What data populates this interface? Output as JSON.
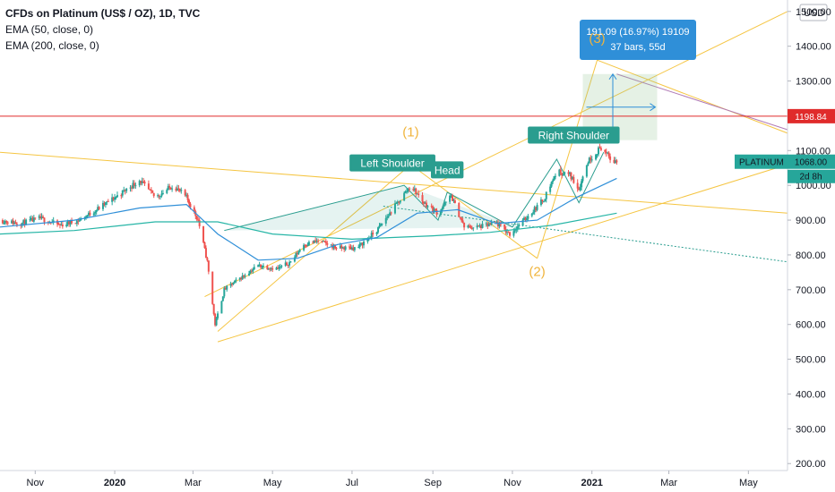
{
  "header": {
    "title": "CFDs on Platinum (US$ / OZ), 1D, TVC",
    "ema50": "EMA (50, close, 0)",
    "ema200": "EMA (200, close, 0)"
  },
  "currency": "USD",
  "chart_data": {
    "type": "candlestick",
    "symbol": "PLATINUM",
    "timeframe": "1D",
    "source": "TVC",
    "x_ticks": [
      "Nov",
      "2020",
      "Mar",
      "May",
      "Jul",
      "Sep",
      "Nov",
      "2021",
      "Mar",
      "May"
    ],
    "x_bold_ticks": [
      "2020",
      "2021"
    ],
    "y_ticks": [
      1500,
      1400,
      1300,
      1200,
      1100,
      1000,
      900,
      800,
      700,
      600,
      500,
      400,
      300,
      200
    ],
    "y_tick_labels": [
      "1500.00",
      "1400.00",
      "1300.00",
      "1200.00",
      "1100.00",
      "1000.00",
      "900.00",
      "800.00",
      "700.00",
      "600.00",
      "500.00",
      "400.00",
      "300.00",
      "200.00"
    ],
    "ylim": [
      180,
      1520
    ],
    "xlim": [
      "2019-10-05",
      "2021-05-31"
    ],
    "price_series": [
      [
        "2019-10-05",
        900
      ],
      [
        "2019-10-20",
        890
      ],
      [
        "2019-11-05",
        905
      ],
      [
        "2019-11-20",
        885
      ],
      [
        "2019-12-05",
        900
      ],
      [
        "2019-12-20",
        935
      ],
      [
        "2020-01-05",
        975
      ],
      [
        "2020-01-20",
        1015
      ],
      [
        "2020-02-01",
        965
      ],
      [
        "2020-02-15",
        1000
      ],
      [
        "2020-02-25",
        965
      ],
      [
        "2020-03-05",
        900
      ],
      [
        "2020-03-12",
        780
      ],
      [
        "2020-03-18",
        600
      ],
      [
        "2020-03-25",
        700
      ],
      [
        "2020-04-05",
        730
      ],
      [
        "2020-04-20",
        770
      ],
      [
        "2020-05-05",
        760
      ],
      [
        "2020-05-15",
        780
      ],
      [
        "2020-05-25",
        830
      ],
      [
        "2020-06-05",
        840
      ],
      [
        "2020-06-20",
        820
      ],
      [
        "2020-07-05",
        820
      ],
      [
        "2020-07-20",
        870
      ],
      [
        "2020-08-01",
        930
      ],
      [
        "2020-08-15",
        1000
      ],
      [
        "2020-08-25",
        950
      ],
      [
        "2020-09-05",
        920
      ],
      [
        "2020-09-15",
        970
      ],
      [
        "2020-09-25",
        880
      ],
      [
        "2020-10-05",
        880
      ],
      [
        "2020-10-20",
        890
      ],
      [
        "2020-10-30",
        860
      ],
      [
        "2020-11-10",
        900
      ],
      [
        "2020-11-25",
        960
      ],
      [
        "2020-12-05",
        1040
      ],
      [
        "2020-12-15",
        1030
      ],
      [
        "2020-12-22",
        990
      ],
      [
        "2020-12-29",
        1070
      ],
      [
        "2021-01-08",
        1110
      ],
      [
        "2021-01-15",
        1075
      ],
      [
        "2021-01-20",
        1068
      ]
    ],
    "ema50": [
      [
        "2019-10-05",
        880
      ],
      [
        "2019-12-01",
        900
      ],
      [
        "2020-01-20",
        935
      ],
      [
        "2020-02-25",
        945
      ],
      [
        "2020-03-20",
        860
      ],
      [
        "2020-04-20",
        785
      ],
      [
        "2020-05-20",
        790
      ],
      [
        "2020-06-20",
        830
      ],
      [
        "2020-07-20",
        850
      ],
      [
        "2020-08-20",
        920
      ],
      [
        "2020-09-20",
        930
      ],
      [
        "2020-10-20",
        890
      ],
      [
        "2020-11-20",
        900
      ],
      [
        "2020-12-20",
        965
      ],
      [
        "2021-01-20",
        1020
      ]
    ],
    "ema200": [
      [
        "2019-10-05",
        860
      ],
      [
        "2019-12-01",
        870
      ],
      [
        "2020-02-01",
        895
      ],
      [
        "2020-03-20",
        895
      ],
      [
        "2020-05-01",
        860
      ],
      [
        "2020-07-01",
        845
      ],
      [
        "2020-09-01",
        855
      ],
      [
        "2020-10-15",
        865
      ],
      [
        "2020-12-01",
        885
      ],
      [
        "2021-01-20",
        920
      ]
    ],
    "annotations": [
      {
        "text": "Left Shoulder",
        "date": "2020-08-01",
        "price": 1040
      },
      {
        "text": "Head",
        "date": "2020-09-12",
        "price": 1020
      },
      {
        "text": "Right Shoulder",
        "date": "2020-12-18",
        "price": 1120
      }
    ],
    "wave_labels": [
      {
        "text": "(1)",
        "date": "2020-08-15",
        "price": 1140
      },
      {
        "text": "(2)",
        "date": "2020-11-20",
        "price": 740
      },
      {
        "text": "(3)",
        "date": "2021-01-05",
        "price": 1410
      }
    ],
    "measure": {
      "line1": "191.09 (16.97%) 19109",
      "line2": "37 bars, 55d",
      "from_price": 1130,
      "to_price": 1320,
      "from_date": "2020-12-25",
      "to_date": "2021-02-20"
    },
    "horizontal_level": {
      "price": 1198.84,
      "label": "1198.84",
      "color": "#e02b2b"
    },
    "last_price": {
      "price": 1068,
      "label": "PLATINUM",
      "value": "1068.00",
      "countdown": "2d 8h",
      "color": "#26a69a"
    },
    "colors": {
      "up": "#26a69a",
      "down": "#ef5350",
      "ema50": "#2f8fd8",
      "ema200": "#26b5a6",
      "fib_lines": "#f5c542",
      "pattern": "#2a9d8f"
    }
  }
}
